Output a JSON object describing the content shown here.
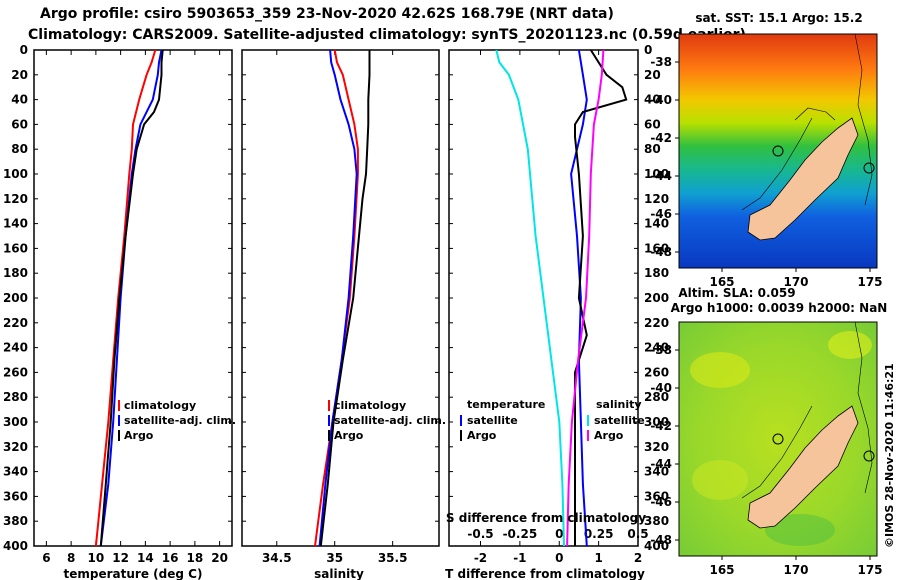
{
  "header": {
    "line1": "Argo profile: csiro 5903653_359 23-Nov-2020 42.62S 168.79E (NRT data)",
    "line2": "Climatology: CARS2009. Satellite-adjusted climatology: synTS_20201123.nc (0.59d earlier)"
  },
  "depth_ticks": [
    "0",
    "20",
    "40",
    "60",
    "80",
    "100",
    "120",
    "140",
    "160",
    "180",
    "200",
    "220",
    "240",
    "260",
    "280",
    "300",
    "320",
    "340",
    "360",
    "380",
    "400"
  ],
  "colors": {
    "climatology": "#ff0000",
    "satellite": "#0000ff",
    "argo": "#000000",
    "sat_salinity": "#00e5e5",
    "clim_salinity": "#ff00ff",
    "land": "#f5c49a"
  },
  "chart_data": [
    {
      "type": "line",
      "title": "",
      "xlabel": "temperature (deg C)",
      "ylabel": "depth",
      "xlim": [
        5,
        21
      ],
      "ylim": [
        400,
        0
      ],
      "xticks": [
        "6",
        "8",
        "10",
        "12",
        "14",
        "16",
        "18",
        "20"
      ],
      "legend": [
        "climatology",
        "satellite-adj. clim.",
        "Argo"
      ],
      "series": [
        {
          "name": "climatology",
          "color": "#ff0000",
          "depth": [
            0,
            10,
            20,
            40,
            60,
            80,
            100,
            150,
            200,
            250,
            300,
            350,
            400
          ],
          "values": [
            14.8,
            14.5,
            14.1,
            13.5,
            13.0,
            12.9,
            12.7,
            12.3,
            11.8,
            11.4,
            11.0,
            10.5,
            10.0
          ]
        },
        {
          "name": "satellite-adj. clim.",
          "color": "#0000ff",
          "depth": [
            0,
            10,
            20,
            40,
            60,
            80,
            100,
            150,
            200,
            250,
            300,
            350,
            400
          ],
          "values": [
            15.3,
            15.1,
            15.0,
            14.6,
            13.6,
            13.2,
            12.9,
            12.4,
            12.0,
            11.7,
            11.4,
            11.0,
            10.4
          ]
        },
        {
          "name": "Argo",
          "color": "#000000",
          "depth": [
            0,
            10,
            20,
            40,
            50,
            60,
            80,
            100,
            150,
            200,
            250,
            300,
            350,
            400
          ],
          "values": [
            15.4,
            15.3,
            15.3,
            15.1,
            14.7,
            13.9,
            13.3,
            13.0,
            12.4,
            11.9,
            11.5,
            11.2,
            10.8,
            10.4
          ]
        }
      ]
    },
    {
      "type": "line",
      "xlabel": "salinity",
      "ylabel": "depth",
      "xlim": [
        34.2,
        35.9
      ],
      "ylim": [
        400,
        0
      ],
      "xticks": [
        "34.5",
        "35",
        "35.5"
      ],
      "legend": [
        "climatology",
        "satellite-adj. clim.",
        "Argo"
      ],
      "series": [
        {
          "name": "climatology",
          "color": "#ff0000",
          "depth": [
            0,
            10,
            20,
            40,
            60,
            80,
            100,
            150,
            200,
            250,
            300,
            350,
            400
          ],
          "values": [
            35.0,
            35.02,
            35.07,
            35.12,
            35.17,
            35.2,
            35.2,
            35.17,
            35.13,
            35.06,
            34.98,
            34.9,
            34.83
          ]
        },
        {
          "name": "satellite-adj. clim.",
          "color": "#0000ff",
          "depth": [
            0,
            10,
            20,
            40,
            60,
            80,
            100,
            150,
            200,
            250,
            300,
            350,
            400
          ],
          "values": [
            34.96,
            34.97,
            35.0,
            35.05,
            35.12,
            35.17,
            35.19,
            35.16,
            35.12,
            35.06,
            34.98,
            34.92,
            34.87
          ]
        },
        {
          "name": "Argo",
          "color": "#000000",
          "depth": [
            0,
            20,
            40,
            60,
            80,
            100,
            120,
            150,
            200,
            250,
            300,
            350,
            400
          ],
          "values": [
            35.3,
            35.3,
            35.29,
            35.29,
            35.28,
            35.27,
            35.24,
            35.21,
            35.16,
            35.07,
            34.99,
            34.94,
            34.88
          ]
        }
      ]
    },
    {
      "type": "line",
      "xlabel": "T difference from climatology",
      "xlabel2": "S difference from climatology",
      "ylabel": "depth",
      "xlim": [
        -2.8,
        2.0
      ],
      "ylim": [
        400,
        0
      ],
      "xticks": [
        "-2",
        "-1",
        "0",
        "1",
        "2"
      ],
      "xticks2": [
        "-0.5",
        "-0.25",
        "0",
        "0.25",
        "0.5"
      ],
      "legend_title_left": "temperature",
      "legend_title_right": "salinity",
      "legend": [
        "satellite",
        "Argo",
        "satellite",
        "Argo"
      ],
      "series": [
        {
          "name": "T satellite",
          "color": "#0000ff",
          "depth": [
            0,
            20,
            40,
            60,
            100,
            150,
            200,
            250,
            300,
            350,
            400
          ],
          "values": [
            0.5,
            0.6,
            0.7,
            0.6,
            0.3,
            0.45,
            0.55,
            0.5,
            0.55,
            0.6,
            0.7
          ]
        },
        {
          "name": "T Argo",
          "color": "#000000",
          "depth": [
            0,
            20,
            30,
            40,
            50,
            60,
            70,
            100,
            150,
            200,
            230,
            260,
            300,
            350,
            400
          ],
          "values": [
            0.8,
            1.2,
            1.6,
            1.7,
            0.6,
            0.4,
            0.4,
            0.5,
            0.6,
            0.5,
            0.7,
            0.4,
            0.4,
            0.4,
            0.4
          ]
        },
        {
          "name": "S satellite",
          "color": "#00e5e5",
          "depth": [
            0,
            10,
            20,
            40,
            80,
            150,
            200,
            250,
            300,
            350,
            400
          ],
          "values": [
            -0.4,
            -0.38,
            -0.32,
            -0.26,
            -0.2,
            -0.15,
            -0.1,
            -0.05,
            0.0,
            0.02,
            0.03
          ]
        },
        {
          "name": "S Argo",
          "color": "#ff00ff",
          "depth": [
            0,
            20,
            40,
            60,
            100,
            150,
            200,
            250,
            300,
            350,
            400
          ],
          "values": [
            0.28,
            0.27,
            0.25,
            0.22,
            0.2,
            0.19,
            0.17,
            0.12,
            0.08,
            0.06,
            0.05
          ]
        }
      ]
    }
  ],
  "map_top": {
    "title": "sat. SST: 15.1 Argo: 15.2",
    "lat_ticks": [
      "-38",
      "-40",
      "-42",
      "-44",
      "-46",
      "-48"
    ],
    "lon_ticks": [
      "165",
      "170",
      "175"
    ]
  },
  "map_bottom": {
    "title1": "Altim. SLA: 0.059",
    "title2": "Argo h1000: 0.0039 h2000: NaN",
    "lat_ticks": [
      "-38",
      "-40",
      "-42",
      "-44",
      "-46",
      "-48"
    ],
    "lon_ticks": [
      "165",
      "170",
      "175"
    ]
  },
  "footer": {
    "credit": "©IMOS 28-Nov-2020 11:46:21"
  }
}
